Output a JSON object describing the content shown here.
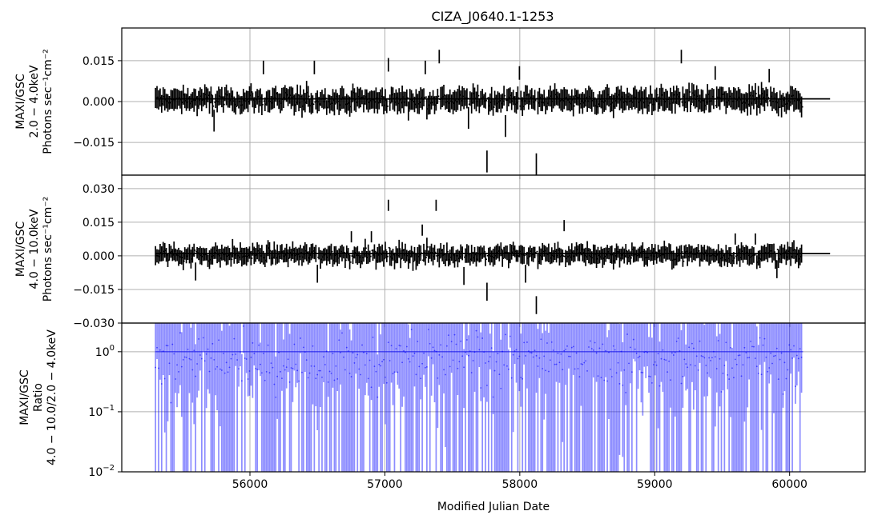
{
  "chart_data": {
    "type": "errorbar-lightcurve",
    "title": "CIZA_J0640.1-1253",
    "xlabel": "Modified Julian Date",
    "xlim": [
      55050,
      60560
    ],
    "xticks": [
      56000,
      57000,
      58000,
      59000,
      60000
    ],
    "xtick_labels": [
      "56000",
      "57000",
      "58000",
      "59000",
      "60000"
    ],
    "grid": true,
    "panels": [
      {
        "id": "soft",
        "ylabel_lines": [
          "MAXI/GSC",
          "2.0 − 4.0keV",
          "Photons sec⁻¹cm⁻²"
        ],
        "ylim": [
          -0.027,
          0.027
        ],
        "scale": "linear",
        "yticks": [
          -0.015,
          0.0,
          0.015
        ],
        "ytick_labels": [
          "−0.015",
          "0.000",
          "0.015"
        ],
        "color": "#000000",
        "x_start": 55300,
        "x_end": 60100,
        "mean_line": {
          "x": [
            55300,
            60300
          ],
          "y": 0.001
        },
        "spikes": [
          {
            "x": 55730,
            "y": -0.011
          },
          {
            "x": 56100,
            "y": 0.015
          },
          {
            "x": 56480,
            "y": 0.015
          },
          {
            "x": 57020,
            "y": 0.016
          },
          {
            "x": 57300,
            "y": 0.015
          },
          {
            "x": 57400,
            "y": 0.019
          },
          {
            "x": 57620,
            "y": -0.01
          },
          {
            "x": 57760,
            "y": -0.026
          },
          {
            "x": 57890,
            "y": -0.013
          },
          {
            "x": 58000,
            "y": 0.013
          },
          {
            "x": 58120,
            "y": -0.027
          },
          {
            "x": 59200,
            "y": 0.019
          },
          {
            "x": 59450,
            "y": 0.013
          },
          {
            "x": 59850,
            "y": 0.012
          }
        ]
      },
      {
        "id": "hard",
        "ylabel_lines": [
          "MAXI/GSC",
          "4.0 − 10.0keV",
          "Photons sec⁻¹cm⁻²"
        ],
        "ylim": [
          -0.03,
          0.036
        ],
        "scale": "linear",
        "yticks": [
          -0.03,
          -0.015,
          0.0,
          0.015,
          0.03
        ],
        "ytick_labels": [
          "−0.030",
          "−0.015",
          "0.000",
          "0.015",
          "0.030"
        ],
        "color": "#000000",
        "x_start": 55300,
        "x_end": 60100,
        "mean_line": {
          "x": [
            55300,
            60300
          ],
          "y": 0.001
        },
        "spikes": [
          {
            "x": 55600,
            "y": -0.011
          },
          {
            "x": 56500,
            "y": -0.012
          },
          {
            "x": 56750,
            "y": 0.011
          },
          {
            "x": 56900,
            "y": 0.011
          },
          {
            "x": 57030,
            "y": 0.025
          },
          {
            "x": 57280,
            "y": 0.014
          },
          {
            "x": 57380,
            "y": 0.025
          },
          {
            "x": 57580,
            "y": -0.013
          },
          {
            "x": 57760,
            "y": -0.02
          },
          {
            "x": 58040,
            "y": -0.012
          },
          {
            "x": 58120,
            "y": -0.026
          },
          {
            "x": 58330,
            "y": 0.016
          },
          {
            "x": 59600,
            "y": 0.01
          },
          {
            "x": 59750,
            "y": 0.01
          },
          {
            "x": 59900,
            "y": -0.01
          }
        ]
      },
      {
        "id": "ratio",
        "ylabel_lines": [
          "MAXI/GSC",
          "Ratio",
          "4.0 − 10.0/2.0 − 4.0keV"
        ],
        "ylim": [
          0.01,
          3.0
        ],
        "scale": "log",
        "yticks": [
          0.01,
          0.1,
          1.0
        ],
        "ytick_labels": [
          "10",
          "10",
          "10"
        ],
        "ytick_exponents": [
          "−2",
          "−1",
          "0"
        ],
        "color": "#0000ff",
        "x_start": 55300,
        "x_end": 60100,
        "mean_line": {
          "x": [
            55300,
            60100
          ],
          "y": 1.0
        }
      }
    ]
  }
}
